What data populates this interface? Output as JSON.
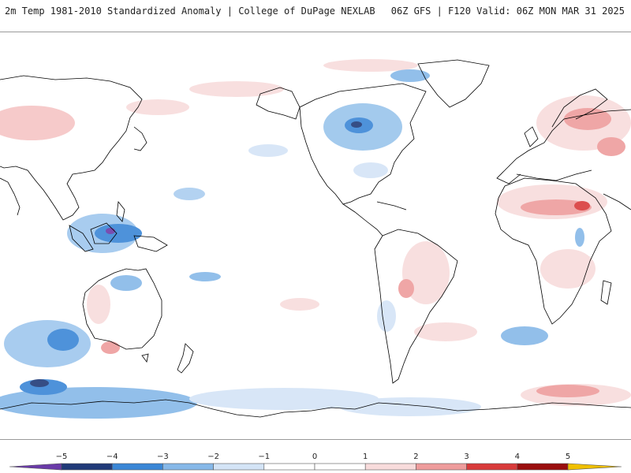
{
  "header": {
    "title": "2m Temp 1981-2010 Standardized Anomaly | College of DuPage NEXLAB",
    "run_info": "06Z GFS | F120 Valid: 06Z MON MAR 31 2025"
  },
  "map": {
    "projection": "global equirectangular, Pacific-centered",
    "coast_color": "#000000",
    "land_color": "#ffffff"
  },
  "colorbar": {
    "tick_labels": [
      "−5",
      "−4",
      "−3",
      "−2",
      "−1",
      "0",
      "1",
      "2",
      "3",
      "4",
      "5"
    ],
    "colors": [
      "#6a3aa8",
      "#203a78",
      "#3a86d6",
      "#86b8e8",
      "#d4e4f6",
      "#ffffff",
      "#ffffff",
      "#f8dcdc",
      "#ee9c9c",
      "#d83a3a",
      "#9a0e0e",
      "#f0c000"
    ]
  }
}
